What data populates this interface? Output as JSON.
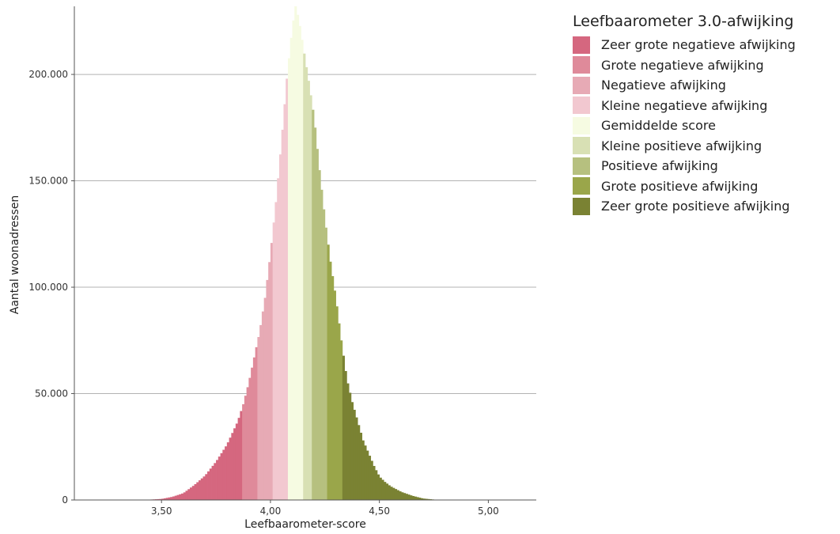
{
  "chart_data": {
    "type": "bar",
    "xlabel": "Leefbaarometer-score",
    "ylabel": "Aantal woonadressen",
    "xlim": [
      3.1,
      5.22
    ],
    "ylim": [
      0,
      232000
    ],
    "x_ticks": [
      3.5,
      4.0,
      4.5,
      5.0
    ],
    "x_tick_labels": [
      "3,50",
      "4,00",
      "4,50",
      "5,00"
    ],
    "y_ticks": [
      0,
      50000,
      100000,
      150000,
      200000
    ],
    "y_tick_labels": [
      "0",
      "50.000",
      "100.000",
      "150.000",
      "200.000"
    ],
    "grid": "horizontal",
    "legend_position": "right",
    "legend_title": "Leefbaarometer 3.0-afwijking",
    "bin_width": 0.01,
    "categories": [
      {
        "label": "Zeer grote negatieve afwijking",
        "color": "#d5677f",
        "x_min": 3.4,
        "x_max": 3.865
      },
      {
        "label": "Grote negatieve afwijking",
        "color": "#df8a9a",
        "x_min": 3.865,
        "x_max": 3.935
      },
      {
        "label": "Negatieve afwijking",
        "color": "#e7aab5",
        "x_min": 3.935,
        "x_max": 4.005
      },
      {
        "label": "Kleine negatieve afwijking",
        "color": "#f2c8d0",
        "x_min": 4.005,
        "x_max": 4.075
      },
      {
        "label": "Gemiddelde score",
        "color": "#f6fbe2",
        "x_min": 4.075,
        "x_max": 4.145
      },
      {
        "label": "Kleine positieve afwijking",
        "color": "#d8e0b4",
        "x_min": 4.145,
        "x_max": 4.185
      },
      {
        "label": "Positieve afwijking",
        "color": "#b6c07f",
        "x_min": 4.185,
        "x_max": 4.255
      },
      {
        "label": "Grote positieve afwijking",
        "color": "#9aa64a",
        "x_min": 4.255,
        "x_max": 4.325
      },
      {
        "label": "Zeer grote positieve afwijking",
        "color": "#7a8233",
        "x_min": 4.325,
        "x_max": 4.8
      }
    ],
    "histogram_profile": [
      [
        3.4,
        0
      ],
      [
        3.45,
        200
      ],
      [
        3.5,
        500
      ],
      [
        3.55,
        1500
      ],
      [
        3.6,
        3200
      ],
      [
        3.65,
        7000
      ],
      [
        3.7,
        11500
      ],
      [
        3.75,
        18000
      ],
      [
        3.8,
        26000
      ],
      [
        3.85,
        37000
      ],
      [
        3.875,
        45000
      ],
      [
        3.9,
        55000
      ],
      [
        3.925,
        67000
      ],
      [
        3.95,
        79000
      ],
      [
        3.975,
        95000
      ],
      [
        4.0,
        116000
      ],
      [
        4.025,
        140000
      ],
      [
        4.05,
        168000
      ],
      [
        4.075,
        198000
      ],
      [
        4.1,
        222000
      ],
      [
        4.115,
        232000
      ],
      [
        4.13,
        226000
      ],
      [
        4.15,
        213000
      ],
      [
        4.175,
        197000
      ],
      [
        4.2,
        180000
      ],
      [
        4.225,
        155000
      ],
      [
        4.25,
        132000
      ],
      [
        4.275,
        112000
      ],
      [
        4.3,
        95000
      ],
      [
        4.325,
        75000
      ],
      [
        4.35,
        57000
      ],
      [
        4.375,
        46000
      ],
      [
        4.4,
        37000
      ],
      [
        4.425,
        28000
      ],
      [
        4.45,
        22000
      ],
      [
        4.475,
        16000
      ],
      [
        4.5,
        11000
      ],
      [
        4.525,
        8500
      ],
      [
        4.55,
        6500
      ],
      [
        4.6,
        3800
      ],
      [
        4.65,
        2000
      ],
      [
        4.7,
        700
      ],
      [
        4.75,
        200
      ],
      [
        4.8,
        0
      ]
    ]
  }
}
